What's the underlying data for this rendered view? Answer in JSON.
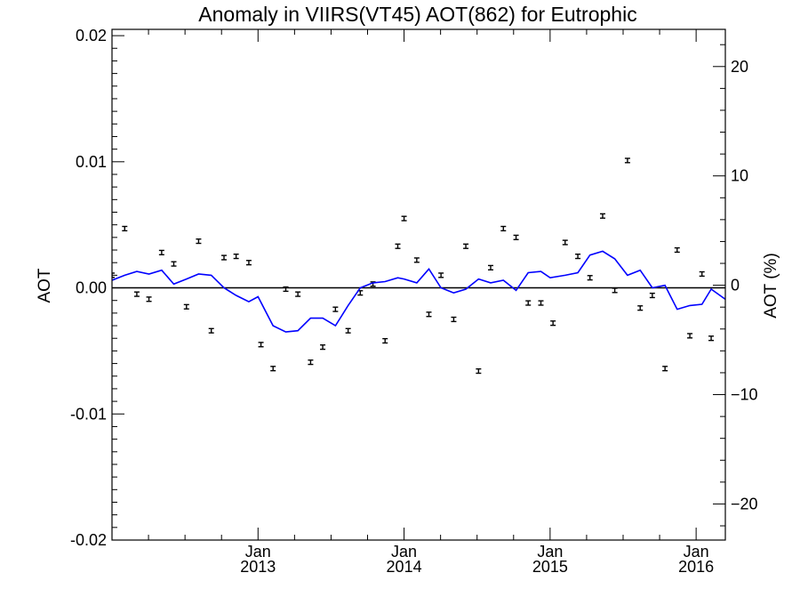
{
  "chart_data": {
    "type": "scatter",
    "title": "Anomaly in VIIRS(VT45) AOT(862) for Eutrophic",
    "ylabel": "AOT",
    "y2label": "AOT (%)",
    "xlim": [
      2012.0,
      2016.2
    ],
    "ylim": [
      -0.02,
      0.0205
    ],
    "y2lim": [
      -23.3,
      23.4
    ],
    "x_ticks": [
      {
        "value": 2013.0,
        "month": "Jan",
        "year": "2013"
      },
      {
        "value": 2014.0,
        "month": "Jan",
        "year": "2014"
      },
      {
        "value": 2015.0,
        "month": "Jan",
        "year": "2015"
      },
      {
        "value": 2016.0,
        "month": "Jan",
        "year": "2016"
      }
    ],
    "y_ticks": [
      "0.02",
      "0.01",
      "0.00",
      "-0.01",
      "-0.02"
    ],
    "y_tick_values": [
      0.02,
      0.01,
      0.0,
      -0.01,
      -0.02
    ],
    "y2_ticks": [
      "20",
      "10",
      "0",
      "−10",
      "−20"
    ],
    "y2_tick_values": [
      20,
      10,
      0,
      -10,
      -20
    ],
    "zero_line": true,
    "grid": false,
    "series": [
      {
        "kind": "points_with_error_bars",
        "color": "#000000",
        "x": [
          2012.0,
          2012.087,
          2012.17,
          2012.253,
          2012.34,
          2012.423,
          2012.51,
          2012.593,
          2012.68,
          2012.767,
          2012.85,
          2012.937,
          2013.02,
          2013.103,
          2013.19,
          2013.273,
          2013.36,
          2013.443,
          2013.53,
          2013.617,
          2013.7,
          2013.787,
          2013.87,
          2013.957,
          2014.0,
          2014.087,
          2014.17,
          2014.253,
          2014.34,
          2014.423,
          2014.51,
          2014.593,
          2014.68,
          2014.767,
          2014.85,
          2014.937,
          2015.02,
          2015.103,
          2015.19,
          2015.273,
          2015.36,
          2015.443,
          2015.53,
          2015.617,
          2015.7,
          2015.787,
          2015.87,
          2015.957,
          2016.04,
          2016.103
        ],
        "values": [
          0.001,
          0.0047,
          -0.0005,
          -0.0009,
          0.0028,
          0.0019,
          -0.0015,
          0.0037,
          -0.0034,
          0.0024,
          0.0025,
          0.002,
          -0.0045,
          -0.0064,
          -0.0001,
          -0.0005,
          -0.0059,
          -0.0047,
          -0.0017,
          -0.0034,
          -0.0004,
          0.0003,
          -0.0042,
          0.0033,
          0.0055,
          0.0022,
          -0.0021,
          0.001,
          -0.0025,
          0.0033,
          -0.0066,
          0.0016,
          0.0047,
          0.004,
          -0.0012,
          -0.0012,
          -0.0028,
          0.0036,
          0.0025,
          0.0008,
          0.0057,
          -0.0002,
          0.0101,
          -0.0016,
          -0.0006,
          -0.0064,
          0.003,
          -0.0038,
          0.0011,
          -0.004
        ],
        "error": [
          0.0001,
          0.0001,
          0.0001,
          0.0001,
          0.0001,
          0.0001,
          0.0001,
          0.0001,
          0.0001,
          0.0001,
          0.0001,
          0.0001,
          0.0001,
          0.0001,
          0.0001,
          0.0001,
          0.0001,
          0.0001,
          0.0001,
          0.0001,
          0.0001,
          0.0001,
          0.0001,
          0.0001,
          0.0001,
          0.0001,
          0.0001,
          0.0001,
          0.0001,
          0.0001,
          0.0001,
          0.0001,
          0.0001,
          0.0001,
          0.0001,
          0.0001,
          0.0001,
          0.0001,
          0.0001,
          0.0001,
          0.0001,
          0.0001,
          0.0001,
          0.0001,
          0.0001,
          0.0001,
          0.0001,
          0.0001,
          0.0001,
          0.0001
        ]
      },
      {
        "kind": "line",
        "color": "#0000ff",
        "x": [
          2012.0,
          2012.087,
          2012.17,
          2012.253,
          2012.34,
          2012.423,
          2012.51,
          2012.593,
          2012.68,
          2012.767,
          2012.85,
          2012.937,
          2013.0,
          2013.103,
          2013.19,
          2013.273,
          2013.36,
          2013.443,
          2013.53,
          2013.617,
          2013.7,
          2013.787,
          2013.87,
          2013.957,
          2014.0,
          2014.087,
          2014.17,
          2014.253,
          2014.34,
          2014.423,
          2014.51,
          2014.593,
          2014.68,
          2014.767,
          2014.85,
          2014.937,
          2015.0,
          2015.103,
          2015.19,
          2015.273,
          2015.36,
          2015.443,
          2015.53,
          2015.617,
          2015.7,
          2015.787,
          2015.87,
          2015.957,
          2016.04,
          2016.103,
          2016.2
        ],
        "values": [
          0.0006,
          0.001,
          0.0013,
          0.0011,
          0.0014,
          0.0003,
          0.0007,
          0.0011,
          0.001,
          0.0,
          -0.0006,
          -0.0011,
          -0.0007,
          -0.003,
          -0.0035,
          -0.0034,
          -0.0024,
          -0.0024,
          -0.003,
          -0.0014,
          0.0,
          0.0004,
          0.0005,
          0.0008,
          0.0007,
          0.0004,
          0.0015,
          0.0,
          -0.0004,
          -0.0001,
          0.0007,
          0.0004,
          0.0006,
          -0.0002,
          0.0012,
          0.0013,
          0.0008,
          0.001,
          0.0012,
          0.0026,
          0.0029,
          0.0023,
          0.001,
          0.0014,
          0.0,
          0.0002,
          -0.0017,
          -0.0014,
          -0.0013,
          -0.0001,
          -0.0009
        ]
      }
    ]
  }
}
